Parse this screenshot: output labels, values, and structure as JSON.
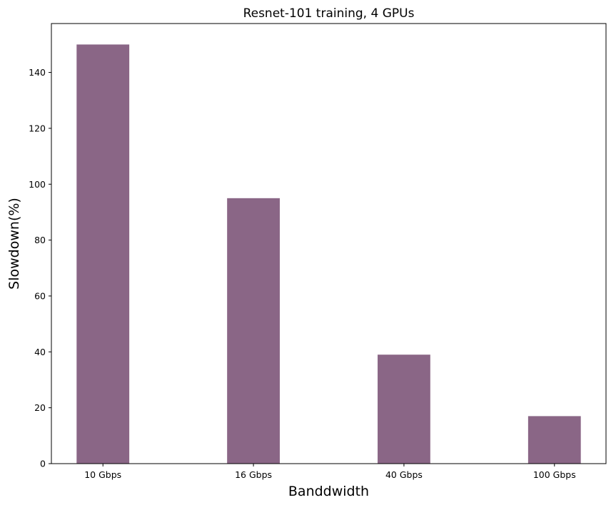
{
  "chart_data": {
    "type": "bar",
    "title": "Resnet-101 training, 4 GPUs",
    "xlabel": "Banddwidth",
    "ylabel": "Slowdown(%)",
    "categories": [
      "10 Gbps",
      "16 Gbps",
      "40 Gbps",
      "100 Gbps"
    ],
    "values": [
      150,
      95,
      39,
      17
    ],
    "ylim": [
      0,
      157.5
    ],
    "yticks": [
      0,
      20,
      40,
      60,
      80,
      100,
      120,
      140
    ],
    "bar_color": "#8a6686",
    "grid": false,
    "legend": "none"
  }
}
